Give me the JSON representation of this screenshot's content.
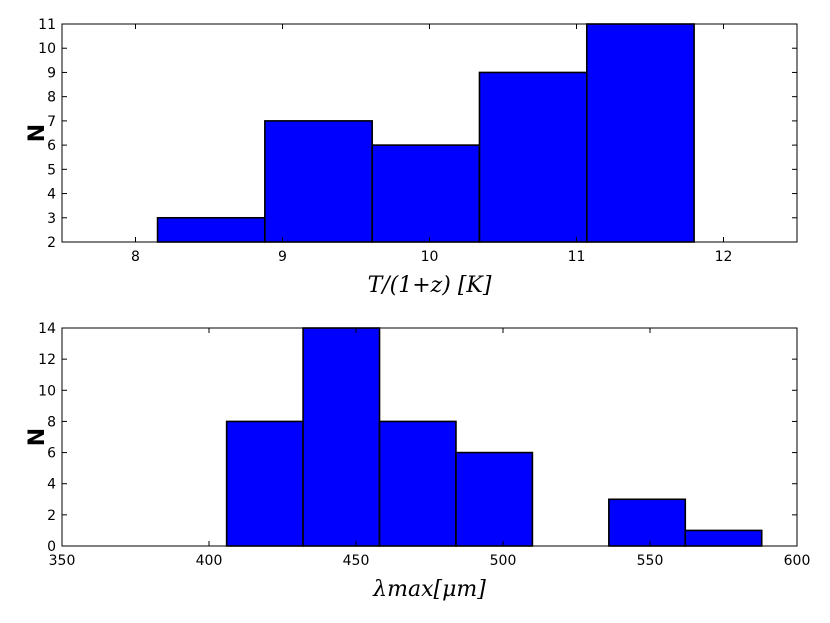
{
  "chart_data": [
    {
      "type": "bar",
      "xlabel": "T/(1+z) [K]",
      "ylabel": "N",
      "xlim": [
        7.5,
        12.5
      ],
      "ylim": [
        2,
        11
      ],
      "xticks": [
        8,
        9,
        10,
        11,
        12
      ],
      "yticks": [
        2,
        3,
        4,
        5,
        6,
        7,
        8,
        9,
        10,
        11
      ],
      "bin_edges": [
        8.15,
        8.88,
        9.61,
        10.34,
        11.07,
        11.8
      ],
      "values": [
        3,
        7,
        6,
        9,
        11
      ],
      "bar_color": "#0000ff"
    },
    {
      "type": "bar",
      "xlabel": "λmax[μm]",
      "ylabel": "N",
      "xlim": [
        350,
        600
      ],
      "ylim": [
        0,
        14
      ],
      "xticks": [
        350,
        400,
        450,
        500,
        550,
        600
      ],
      "yticks": [
        0,
        2,
        4,
        6,
        8,
        10,
        12,
        14
      ],
      "bin_edges": [
        406,
        432,
        458,
        484,
        510,
        536,
        562,
        588
      ],
      "values": [
        8,
        14,
        8,
        6,
        0,
        3,
        1
      ],
      "bar_color": "#0000ff"
    }
  ]
}
